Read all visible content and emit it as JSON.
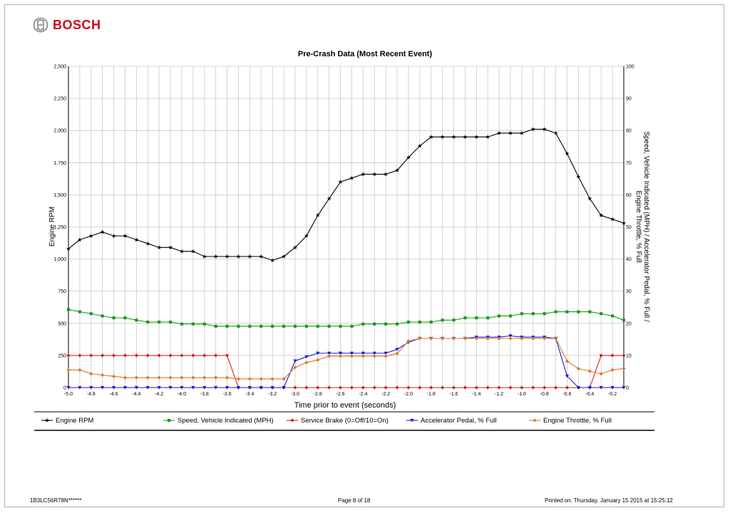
{
  "logo": {
    "text": "BOSCH"
  },
  "footer": {
    "vin": "1B3LC56R78N******",
    "page": "Page 8 of 18",
    "printed_label": "Printed on:",
    "printed_value": "Thursday, January 15 2015 at 15:25:12"
  },
  "colors": {
    "rpm": "#000000",
    "speed": "#1a9a1a",
    "brake": "#d42020",
    "pedal": "#1a1ad0",
    "throttle": "#d8782a"
  },
  "chart_data": {
    "type": "line",
    "title": "Pre-Crash Data (Most Recent Event)",
    "xlabel": "Time prior to event (seconds)",
    "ylabel_left": "Engine RPM",
    "ylabel_right": "Speed, Vehicle Indicated (MPH) / Accelerator Pedal, % Full / Engine Throttle, % Full",
    "xlim": [
      -5.0,
      -0.1
    ],
    "ylim_left": [
      0,
      2500
    ],
    "ylim_right": [
      0,
      100
    ],
    "x_ticks": [
      "-5.0",
      "-4.8",
      "-4.6",
      "-4.4",
      "-4.2",
      "-4.0",
      "-3.8",
      "-3.6",
      "-3.4",
      "-3.2",
      "-3.0",
      "-2.8",
      "-2.6",
      "-2.4",
      "-2.2",
      "-2.0",
      "-1.8",
      "-1.6",
      "-1.4",
      "-1.2",
      "-1.0",
      "-0.8",
      "-0.6",
      "-0.4",
      "-0.2"
    ],
    "y_ticks_left": [
      "0",
      "250",
      "500",
      "750",
      "1,000",
      "1,250",
      "1,500",
      "1,750",
      "2,000",
      "2,250",
      "2,500"
    ],
    "y_ticks_right": [
      "0",
      "10",
      "20",
      "30",
      "40",
      "50",
      "60",
      "70",
      "80",
      "90",
      "100"
    ],
    "grid": true,
    "legend_position": "bottom",
    "x": [
      -5.0,
      -4.9,
      -4.8,
      -4.7,
      -4.6,
      -4.5,
      -4.4,
      -4.3,
      -4.2,
      -4.1,
      -4.0,
      -3.9,
      -3.8,
      -3.7,
      -3.6,
      -3.5,
      -3.4,
      -3.3,
      -3.2,
      -3.1,
      -3.0,
      -2.9,
      -2.8,
      -2.7,
      -2.6,
      -2.5,
      -2.4,
      -2.3,
      -2.2,
      -2.1,
      -2.0,
      -1.9,
      -1.8,
      -1.7,
      -1.6,
      -1.5,
      -1.4,
      -1.3,
      -1.2,
      -1.1,
      -1.0,
      -0.9,
      -0.8,
      -0.7,
      -0.6,
      -0.5,
      -0.4,
      -0.3,
      -0.2,
      -0.1
    ],
    "series": [
      {
        "name": "Engine RPM",
        "axis": "left",
        "marker": "star",
        "values": [
          1080,
          1150,
          1180,
          1210,
          1180,
          1180,
          1150,
          1120,
          1090,
          1090,
          1060,
          1060,
          1020,
          1020,
          1020,
          1020,
          1020,
          1020,
          990,
          1020,
          1090,
          1180,
          1340,
          1470,
          1600,
          1630,
          1660,
          1660,
          1660,
          1690,
          1790,
          1880,
          1950,
          1950,
          1950,
          1950,
          1950,
          1950,
          1980,
          1980,
          1980,
          2010,
          2010,
          1980,
          1820,
          1640,
          1470,
          1340,
          1310,
          1280
        ]
      },
      {
        "name": "Speed, Vehicle Indicated (MPH)",
        "axis": "right",
        "marker": "square",
        "values": [
          24.3,
          23.6,
          23.0,
          22.3,
          21.7,
          21.7,
          21.0,
          20.4,
          20.4,
          20.4,
          19.8,
          19.8,
          19.8,
          19.1,
          19.1,
          19.1,
          19.1,
          19.1,
          19.1,
          19.1,
          19.1,
          19.1,
          19.1,
          19.1,
          19.1,
          19.1,
          19.8,
          19.8,
          19.8,
          19.8,
          20.4,
          20.4,
          20.4,
          21.0,
          21.0,
          21.7,
          21.7,
          21.7,
          22.3,
          22.3,
          23.0,
          23.0,
          23.0,
          23.6,
          23.6,
          23.6,
          23.6,
          23.0,
          22.3,
          21.0
        ]
      },
      {
        "name": "Service Brake (0=Off/10=On)",
        "axis": "right",
        "marker": "diamond",
        "values": [
          10,
          10,
          10,
          10,
          10,
          10,
          10,
          10,
          10,
          10,
          10,
          10,
          10,
          10,
          10,
          0,
          0,
          0,
          0,
          0,
          0,
          0,
          0,
          0,
          0,
          0,
          0,
          0,
          0,
          0,
          0,
          0,
          0,
          0,
          0,
          0,
          0,
          0,
          0,
          0,
          0,
          0,
          0,
          0,
          0,
          0,
          0,
          10,
          10,
          10
        ]
      },
      {
        "name": "Accelerator Pedal, % Full",
        "axis": "right",
        "marker": "triangle-down",
        "values": [
          0,
          0,
          0,
          0,
          0,
          0,
          0,
          0,
          0,
          0,
          0,
          0,
          0,
          0,
          0,
          0,
          0,
          0,
          0,
          0,
          8.3,
          9.6,
          10.7,
          10.7,
          10.7,
          10.7,
          10.7,
          10.7,
          10.7,
          11.9,
          14.1,
          15.3,
          15.3,
          15.3,
          15.3,
          15.3,
          15.7,
          15.7,
          15.7,
          16.1,
          15.7,
          15.7,
          15.7,
          15.3,
          3.6,
          0,
          0,
          0,
          0,
          0
        ]
      },
      {
        "name": "Engine Throttle, % Full",
        "axis": "right",
        "marker": "diamond",
        "values": [
          5.5,
          5.5,
          4.3,
          3.9,
          3.5,
          3.1,
          3.1,
          3.1,
          3.1,
          3.1,
          3.1,
          3.1,
          3.1,
          3.1,
          3.1,
          2.7,
          2.7,
          2.7,
          2.7,
          2.7,
          6.3,
          7.8,
          8.6,
          9.8,
          9.8,
          9.8,
          9.8,
          9.8,
          9.8,
          10.6,
          14.5,
          15.3,
          15.3,
          15.3,
          15.3,
          15.3,
          15.3,
          15.3,
          15.3,
          15.3,
          15.3,
          15.3,
          15.3,
          15.3,
          8.2,
          5.9,
          5.1,
          4.3,
          5.5,
          5.9
        ]
      }
    ]
  }
}
